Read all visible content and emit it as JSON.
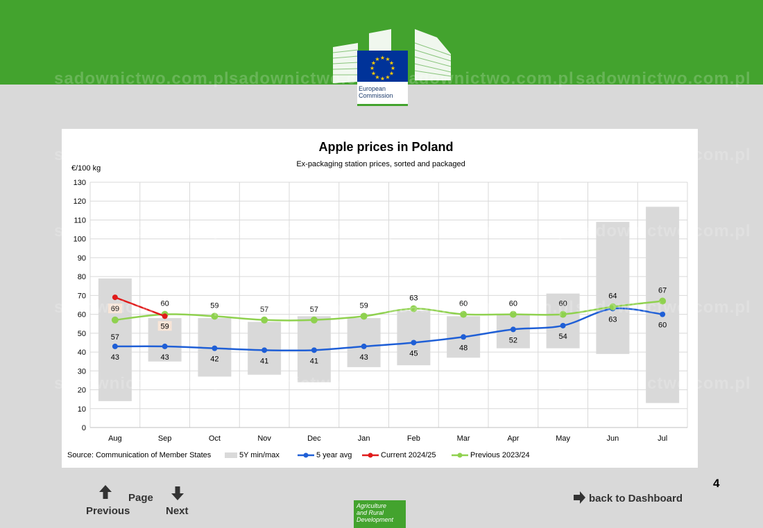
{
  "header": {
    "logo_text_line1": "European",
    "logo_text_line2": "Commission",
    "watermark": "sadownictwo.com.pl"
  },
  "chart_data": {
    "type": "line",
    "title": "Apple prices in Poland",
    "subtitle": "Ex-packaging station prices, sorted and packaged",
    "ylabel": "€/100 kg",
    "xlabel": "",
    "ylim": [
      0,
      130
    ],
    "yticks": [
      0,
      10,
      20,
      30,
      40,
      50,
      60,
      70,
      80,
      90,
      100,
      110,
      120,
      130
    ],
    "grid": true,
    "categories": [
      "Aug",
      "Sep",
      "Oct",
      "Nov",
      "Dec",
      "Jan",
      "Feb",
      "Mar",
      "Apr",
      "May",
      "Jun",
      "Jul"
    ],
    "range_bars": {
      "name": "5Y min/max",
      "color": "#d9d9d9",
      "min": [
        14,
        35,
        27,
        28,
        24,
        32,
        33,
        37,
        42,
        42,
        39,
        13
      ],
      "max": [
        79,
        58,
        58,
        56,
        59,
        58,
        62,
        59,
        60,
        71,
        109,
        117
      ]
    },
    "series": [
      {
        "name": "5 year avg",
        "color": "#1f5fd6",
        "values": [
          43,
          43,
          42,
          41,
          41,
          43,
          45,
          48,
          52,
          54,
          63,
          60
        ],
        "labels": [
          43,
          43,
          42,
          41,
          41,
          43,
          45,
          48,
          52,
          54,
          63,
          60
        ]
      },
      {
        "name": "Current 2024/25",
        "color": "#e01b1b",
        "values": [
          69,
          59,
          null,
          null,
          null,
          null,
          null,
          null,
          null,
          null,
          null,
          null
        ],
        "labels": [
          69,
          59,
          null,
          null,
          null,
          null,
          null,
          null,
          null,
          null,
          null,
          null
        ]
      },
      {
        "name": "Previous 2023/24",
        "color": "#8fd14f",
        "values": [
          57,
          60,
          59,
          57,
          57,
          59,
          63,
          60,
          60,
          60,
          64,
          67
        ],
        "labels": [
          57,
          60,
          59,
          57,
          57,
          59,
          63,
          60,
          60,
          60,
          64,
          67
        ]
      }
    ],
    "source": "Source: Communication of Member States",
    "legend_position": "bottom"
  },
  "nav": {
    "page_label": "Page",
    "previous_label": "Previous",
    "next_label": "Next",
    "dashboard_label": "back to Dashboard",
    "page_number": "4"
  },
  "footer": {
    "agri_line1": "Agriculture",
    "agri_line2": "and Rural",
    "agri_line3": "Development"
  }
}
